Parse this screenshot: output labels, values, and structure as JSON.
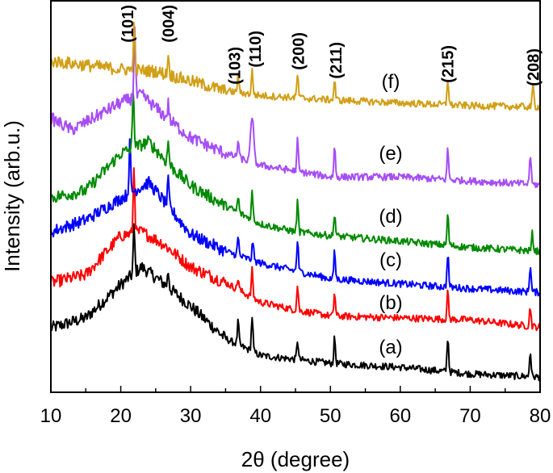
{
  "chart_data": {
    "type": "line",
    "title": "",
    "xlabel": "2θ (degree)",
    "ylabel": "Intensity (arb.u.)",
    "xlim": [
      10,
      80
    ],
    "ylim": [
      0,
      100
    ],
    "xticks": [
      "10",
      "20",
      "30",
      "40",
      "50",
      "60",
      "70",
      "80"
    ],
    "yticks": [],
    "grid": false,
    "legend": "none (series labelled inline at right)",
    "peak_labels": [
      {
        "text": "(101)",
        "x": 21.0
      },
      {
        "text": "(004)",
        "x": 26.8
      },
      {
        "text": "(103)",
        "x": 36.3
      },
      {
        "text": "(110)",
        "x": 39.2
      },
      {
        "text": "(200)",
        "x": 45.4
      },
      {
        "text": "(211)",
        "x": 50.8
      },
      {
        "text": "(215)",
        "x": 66.8
      },
      {
        "text": "(208)",
        "x": 79.0
      }
    ],
    "series": [
      {
        "name": "(a)",
        "color": "#000000",
        "baseline": [
          [
            10,
            16.4
          ],
          [
            15,
            19
          ],
          [
            20,
            27.5
          ],
          [
            23,
            32
          ],
          [
            26,
            28
          ],
          [
            30,
            22
          ],
          [
            35,
            13.7
          ],
          [
            40,
            9.4
          ],
          [
            45,
            8.4
          ],
          [
            50,
            7.4
          ],
          [
            60,
            6.4
          ],
          [
            70,
            4.7
          ],
          [
            80,
            3.9
          ]
        ],
        "peaks": [
          [
            21.9,
            11.7
          ],
          [
            26.8,
            4
          ],
          [
            36.8,
            6
          ],
          [
            38.8,
            9
          ],
          [
            45.3,
            5
          ],
          [
            50.6,
            6.5
          ],
          [
            66.8,
            9
          ],
          [
            78.6,
            6.5
          ]
        ]
      },
      {
        "name": "(b)",
        "color": "#ff0000",
        "baseline": [
          [
            10,
            28
          ],
          [
            15,
            30
          ],
          [
            20,
            40
          ],
          [
            23,
            41
          ],
          [
            26,
            38
          ],
          [
            30,
            32
          ],
          [
            35,
            28
          ],
          [
            40,
            23
          ],
          [
            45,
            21
          ],
          [
            50,
            19.5
          ],
          [
            60,
            19
          ],
          [
            70,
            18.5
          ],
          [
            80,
            16.6
          ]
        ],
        "peaks": [
          [
            21.9,
            17
          ],
          [
            36.8,
            3
          ],
          [
            38.8,
            7
          ],
          [
            45.3,
            6.4
          ],
          [
            50.6,
            6
          ],
          [
            66.8,
            7
          ],
          [
            78.6,
            5
          ]
        ]
      },
      {
        "name": "(c)",
        "color": "#0000ff",
        "baseline": [
          [
            10,
            41
          ],
          [
            15,
            44
          ],
          [
            20,
            49.5
          ],
          [
            24,
            53.6
          ],
          [
            27,
            47
          ],
          [
            30,
            40.4
          ],
          [
            35,
            36
          ],
          [
            40,
            33
          ],
          [
            45,
            31
          ],
          [
            50,
            29
          ],
          [
            60,
            27.7
          ],
          [
            70,
            26.5
          ],
          [
            80,
            25.5
          ]
        ],
        "peaks": [
          [
            21.3,
            12.7
          ],
          [
            26.8,
            6.5
          ],
          [
            36.8,
            4.7
          ],
          [
            38.9,
            5
          ],
          [
            45.3,
            8
          ],
          [
            50.6,
            7
          ],
          [
            66.8,
            8.8
          ],
          [
            78.6,
            7
          ]
        ]
      },
      {
        "name": "(d)",
        "color": "#008a00",
        "baseline": [
          [
            10,
            49.7
          ],
          [
            15,
            51.5
          ],
          [
            20,
            61
          ],
          [
            24,
            64
          ],
          [
            27,
            58
          ],
          [
            30,
            52.8
          ],
          [
            35,
            47.6
          ],
          [
            40,
            43
          ],
          [
            45,
            41
          ],
          [
            50,
            40
          ],
          [
            60,
            38.6
          ],
          [
            70,
            37
          ],
          [
            80,
            36
          ]
        ],
        "peaks": [
          [
            21.8,
            16
          ],
          [
            26.8,
            5.7
          ],
          [
            36.8,
            4
          ],
          [
            38.8,
            7
          ],
          [
            45.3,
            7.8
          ],
          [
            50.6,
            6
          ],
          [
            66.8,
            8
          ],
          [
            78.9,
            4.5
          ]
        ]
      },
      {
        "name": "(e)",
        "color": "#a64df5",
        "baseline": [
          [
            10,
            70
          ],
          [
            13,
            67
          ],
          [
            20,
            74
          ],
          [
            23,
            76
          ],
          [
            26,
            71
          ],
          [
            30,
            65
          ],
          [
            35,
            61
          ],
          [
            40,
            58
          ],
          [
            45,
            56.5
          ],
          [
            50,
            55
          ],
          [
            60,
            55
          ],
          [
            70,
            54
          ],
          [
            80,
            53
          ]
        ],
        "peaks": [
          [
            22,
            17.5
          ],
          [
            26.8,
            4
          ],
          [
            36.8,
            4.5
          ],
          [
            38.8,
            12
          ],
          [
            45.3,
            8
          ],
          [
            50.6,
            7.8
          ],
          [
            66.8,
            7.8
          ],
          [
            78.6,
            7.8
          ]
        ]
      },
      {
        "name": "(f)",
        "color": "#d19f16",
        "baseline": [
          [
            10,
            84.6
          ],
          [
            20,
            82.5
          ],
          [
            25,
            82
          ],
          [
            30,
            79.5
          ],
          [
            35,
            77
          ],
          [
            40,
            75.8
          ],
          [
            50,
            74.7
          ],
          [
            60,
            73.9
          ],
          [
            70,
            73.2
          ],
          [
            80,
            72.9
          ]
        ],
        "peaks": [
          [
            21.9,
            11
          ],
          [
            26.8,
            5
          ],
          [
            36.8,
            4.5
          ],
          [
            38.8,
            6
          ],
          [
            45.3,
            6
          ],
          [
            50.6,
            5
          ],
          [
            66.8,
            6.8
          ],
          [
            79,
            5.5
          ]
        ]
      }
    ]
  }
}
